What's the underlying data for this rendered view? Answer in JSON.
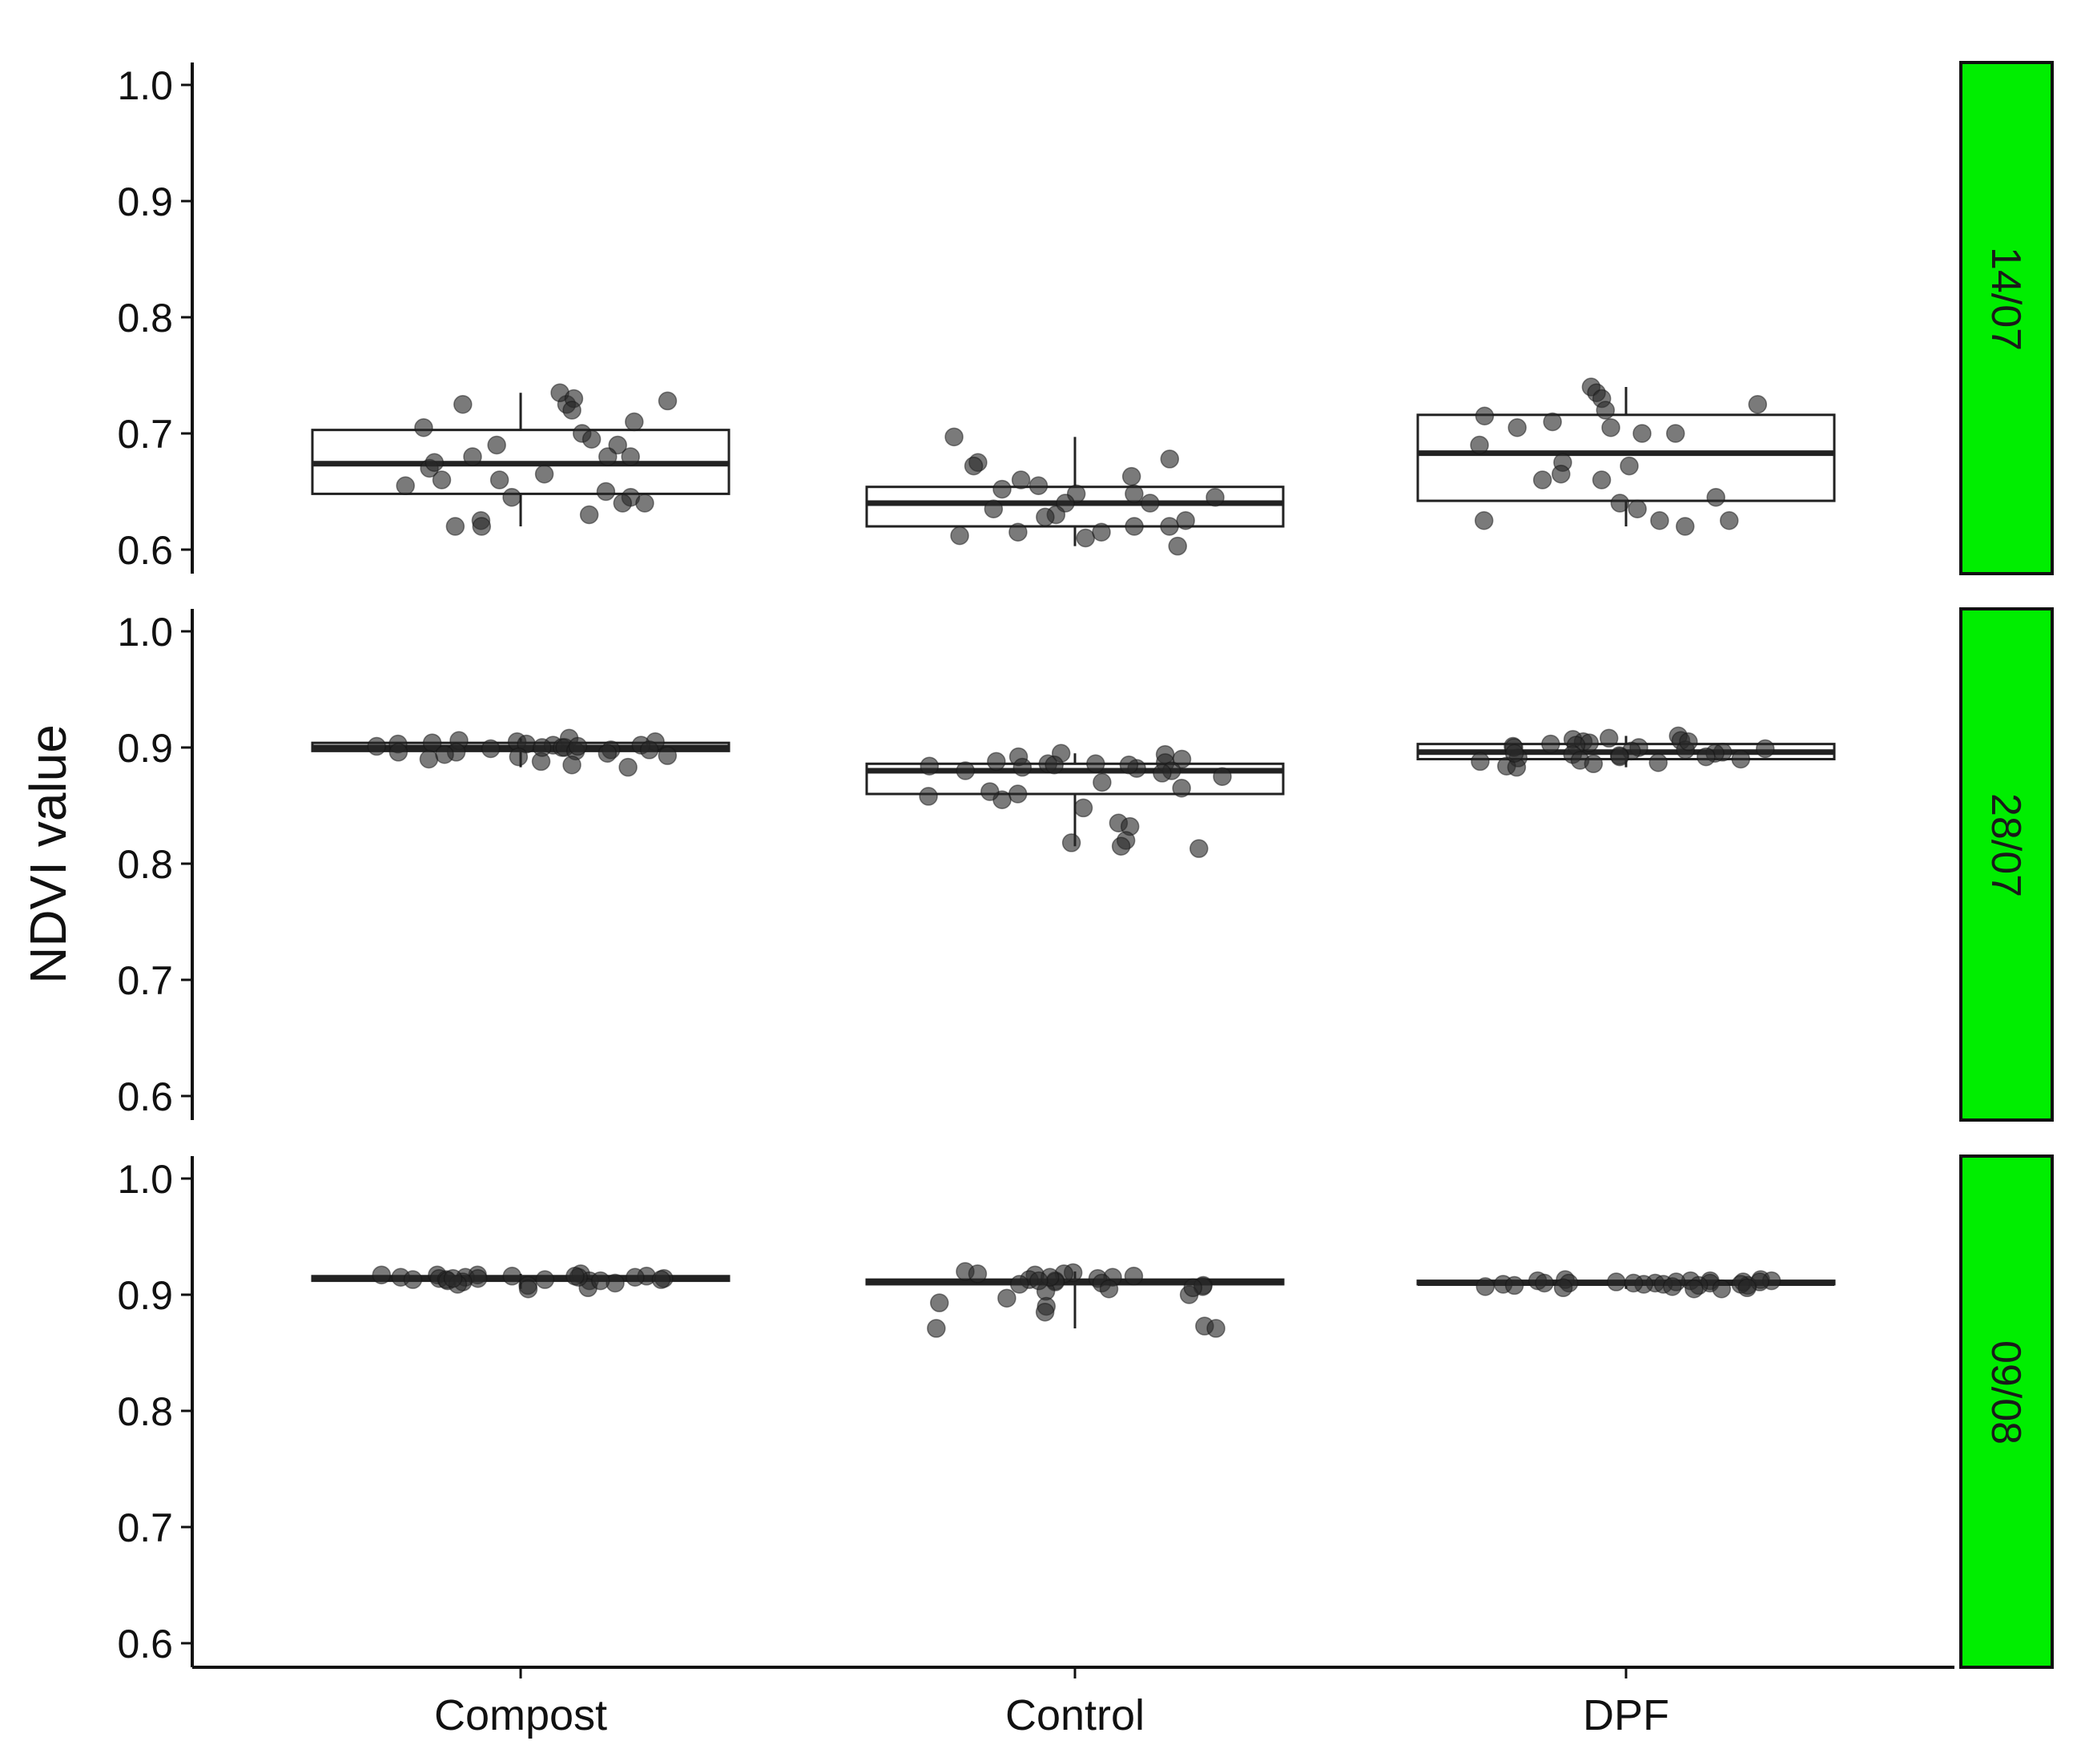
{
  "chart_data": {
    "type": "boxplot",
    "ylabel": "NDVI value",
    "categories": [
      "Compost",
      "Control",
      "DPF"
    ],
    "yticks": [
      "0.6",
      "0.7",
      "0.8",
      "0.9",
      "1.0"
    ],
    "ylim": [
      0.6,
      1.0
    ],
    "facet_strip_color": "#00ee00",
    "facets": [
      {
        "label": "14/07",
        "boxes": [
          {
            "category": "Compost",
            "min": 0.62,
            "q1": 0.648,
            "median": 0.674,
            "q3": 0.703,
            "max": 0.735
          },
          {
            "category": "Control",
            "min": 0.603,
            "q1": 0.62,
            "median": 0.64,
            "q3": 0.654,
            "max": 0.697
          },
          {
            "category": "DPF",
            "min": 0.62,
            "q1": 0.642,
            "median": 0.683,
            "q3": 0.716,
            "max": 0.74
          }
        ],
        "points": [
          [
            0.725,
            0.725,
            0.735,
            0.728,
            0.73,
            0.72,
            0.705,
            0.71,
            0.7,
            0.69,
            0.695,
            0.68,
            0.68,
            0.67,
            0.665,
            0.66,
            0.675,
            0.65,
            0.645,
            0.64,
            0.655,
            0.645,
            0.63,
            0.625,
            0.62,
            0.62,
            0.64,
            0.68,
            0.69,
            0.66
          ],
          [
            0.678,
            0.675,
            0.672,
            0.66,
            0.655,
            0.648,
            0.645,
            0.64,
            0.64,
            0.635,
            0.63,
            0.625,
            0.62,
            0.615,
            0.61,
            0.603,
            0.62,
            0.612,
            0.615,
            0.697,
            0.663,
            0.628,
            0.648,
            0.652
          ],
          [
            0.74,
            0.735,
            0.73,
            0.725,
            0.72,
            0.715,
            0.71,
            0.705,
            0.7,
            0.69,
            0.675,
            0.665,
            0.66,
            0.66,
            0.645,
            0.64,
            0.635,
            0.625,
            0.625,
            0.62,
            0.625,
            0.7,
            0.705,
            0.672
          ]
        ]
      },
      {
        "label": "28/07",
        "boxes": [
          {
            "category": "Compost",
            "min": 0.883,
            "q1": 0.897,
            "median": 0.9,
            "q3": 0.904,
            "max": 0.908
          },
          {
            "category": "Control",
            "min": 0.815,
            "q1": 0.86,
            "median": 0.88,
            "q3": 0.886,
            "max": 0.895
          },
          {
            "category": "DPF",
            "min": 0.883,
            "q1": 0.89,
            "median": 0.896,
            "q3": 0.903,
            "max": 0.91
          }
        ],
        "points": [
          [
            0.908,
            0.906,
            0.905,
            0.905,
            0.904,
            0.903,
            0.902,
            0.902,
            0.901,
            0.9,
            0.9,
            0.899,
            0.898,
            0.897,
            0.896,
            0.895,
            0.893,
            0.892,
            0.89,
            0.888,
            0.885,
            0.883,
            0.9,
            0.901,
            0.903,
            0.898,
            0.896,
            0.894
          ],
          [
            0.895,
            0.894,
            0.892,
            0.89,
            0.888,
            0.887,
            0.886,
            0.885,
            0.884,
            0.883,
            0.882,
            0.88,
            0.878,
            0.875,
            0.87,
            0.865,
            0.86,
            0.858,
            0.855,
            0.848,
            0.835,
            0.832,
            0.82,
            0.818,
            0.815,
            0.813,
            0.885,
            0.88,
            0.886,
            0.862
          ],
          [
            0.91,
            0.908,
            0.907,
            0.906,
            0.905,
            0.904,
            0.903,
            0.902,
            0.901,
            0.9,
            0.899,
            0.898,
            0.897,
            0.896,
            0.895,
            0.894,
            0.893,
            0.892,
            0.891,
            0.89,
            0.889,
            0.888,
            0.887,
            0.886,
            0.884,
            0.883,
            0.9,
            0.895,
            0.892,
            0.905
          ]
        ]
      },
      {
        "label": "09/08",
        "boxes": [
          {
            "category": "Compost",
            "min": 0.905,
            "q1": 0.912,
            "median": 0.914,
            "q3": 0.916,
            "max": 0.918
          },
          {
            "category": "Control",
            "min": 0.871,
            "q1": 0.909,
            "median": 0.911,
            "q3": 0.913,
            "max": 0.92
          },
          {
            "category": "DPF",
            "min": 0.905,
            "q1": 0.909,
            "median": 0.91,
            "q3": 0.912,
            "max": 0.913
          }
        ],
        "points": [
          [
            0.918,
            0.917,
            0.917,
            0.916,
            0.916,
            0.915,
            0.915,
            0.915,
            0.914,
            0.914,
            0.914,
            0.913,
            0.913,
            0.913,
            0.912,
            0.912,
            0.911,
            0.91,
            0.909,
            0.908,
            0.906,
            0.905,
            0.915,
            0.916,
            0.914,
            0.913,
            0.912,
            0.917
          ],
          [
            0.92,
            0.919,
            0.918,
            0.917,
            0.916,
            0.915,
            0.914,
            0.913,
            0.912,
            0.911,
            0.91,
            0.909,
            0.908,
            0.907,
            0.905,
            0.903,
            0.9,
            0.897,
            0.893,
            0.89,
            0.885,
            0.873,
            0.871,
            0.871,
            0.915,
            0.912,
            0.918,
            0.906
          ],
          [
            0.913,
            0.913,
            0.912,
            0.912,
            0.912,
            0.911,
            0.911,
            0.911,
            0.91,
            0.91,
            0.91,
            0.909,
            0.909,
            0.909,
            0.908,
            0.908,
            0.907,
            0.907,
            0.906,
            0.905,
            0.905,
            0.911,
            0.91,
            0.909,
            0.912,
            0.908,
            0.91,
            0.906
          ]
        ]
      }
    ]
  }
}
